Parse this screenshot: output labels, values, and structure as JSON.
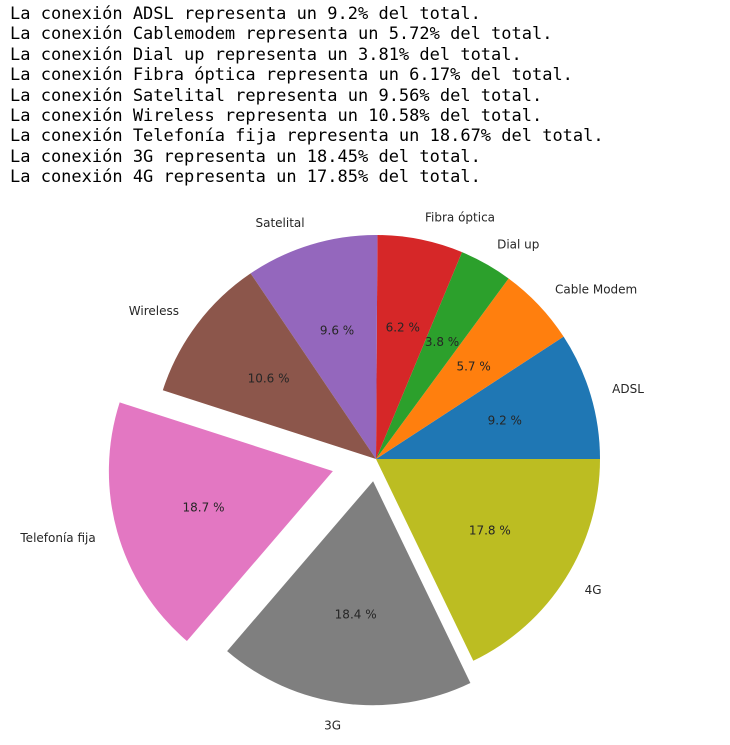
{
  "console_lines": [
    "La conexión ADSL representa un 9.2% del total.",
    "La conexión Cablemodem representa un 5.72% del total.",
    "La conexión Dial up representa un 3.81% del total.",
    "La conexión Fibra óptica representa un 6.17% del total.",
    "La conexión Satelital representa un 9.56% del total.",
    "La conexión Wireless representa un 10.58% del total.",
    "La conexión Telefonía fija representa un 18.67% del total.",
    "La conexión 3G representa un 18.45% del total.",
    "La conexión 4G representa un 17.85% del total."
  ],
  "chart_data": {
    "type": "pie",
    "title": "",
    "start_angle_deg": 0,
    "direction": "counterclockwise",
    "categories": [
      "ADSL",
      "Cable Modem",
      "Dial up",
      "Fibra óptica",
      "Satelital",
      "Wireless",
      "Telefonía fija",
      "3G",
      "4G"
    ],
    "values": [
      9.2,
      5.72,
      3.81,
      6.17,
      9.56,
      10.58,
      18.67,
      18.45,
      17.85
    ],
    "percent_labels": [
      "9.2 %",
      "5.7 %",
      "3.8 %",
      "6.2 %",
      "9.6 %",
      "10.6 %",
      "18.7 %",
      "18.4 %",
      "17.8 %"
    ],
    "explode": [
      0,
      0,
      0,
      0,
      0,
      0,
      0.2,
      0.1,
      0
    ],
    "colors": [
      "#1f77b4",
      "#ff7f0e",
      "#2ca02c",
      "#d62728",
      "#9467bd",
      "#8c564b",
      "#e377c2",
      "#7f7f7f",
      "#bcbd22"
    ]
  }
}
